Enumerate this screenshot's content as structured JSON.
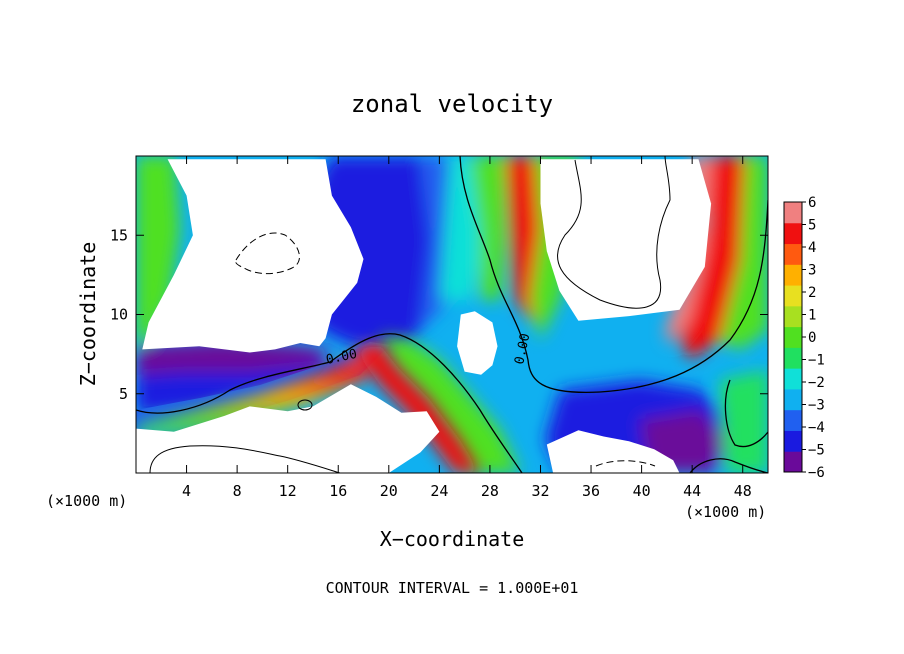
{
  "chart_data": {
    "type": "heatmap",
    "title": "zonal velocity",
    "xlabel": "X−coordinate",
    "ylabel": "Z−coordinate",
    "x_unit_left": "(×1000 m)",
    "x_unit_right": "(×1000 m)",
    "xlim": [
      0,
      50
    ],
    "ylim": [
      0,
      20
    ],
    "xticks": [
      4,
      8,
      12,
      16,
      20,
      24,
      28,
      32,
      36,
      40,
      44,
      48
    ],
    "xtick_labels": [
      "4",
      "8",
      "12",
      "16",
      "20",
      "24",
      "28",
      "32",
      "36",
      "40",
      "44",
      "48"
    ],
    "yticks": [
      5,
      10,
      15
    ],
    "ytick_labels": [
      "5",
      "10",
      "15"
    ],
    "colorbar": {
      "min": -6,
      "max": 6,
      "tick_labels": [
        "6",
        "5",
        "4",
        "3",
        "2",
        "1",
        "0",
        "−1",
        "−2",
        "−3",
        "−4",
        "−5",
        "−6"
      ],
      "colors": [
        "#6a0a9a",
        "#1a1ae0",
        "#2060f0",
        "#10b0f0",
        "#10e0d8",
        "#20e060",
        "#50e020",
        "#a8e020",
        "#e8e020",
        "#ffb000",
        "#ff5a10",
        "#f01010",
        "#f08080"
      ]
    },
    "contour_label": "0.00",
    "contour_interval_text": "CONTOUR INTERVAL = 1.000E+01",
    "fields": [
      {
        "name": "left-white",
        "value": 8,
        "points": [
          [
            0,
            19.8
          ],
          [
            2.5,
            19.8
          ],
          [
            4,
            17.5
          ],
          [
            4.5,
            15
          ],
          [
            3,
            12.5
          ],
          [
            1,
            9.5
          ],
          [
            0.5,
            7.8
          ],
          [
            5,
            8
          ],
          [
            9,
            7.6
          ],
          [
            11,
            7.8
          ],
          [
            13,
            8.2
          ],
          [
            14.5,
            8
          ],
          [
            15,
            8.5
          ],
          [
            15.5,
            10
          ],
          [
            16.5,
            11
          ],
          [
            17.5,
            12
          ],
          [
            18,
            13.5
          ],
          [
            17,
            15.5
          ],
          [
            15.5,
            17.5
          ],
          [
            15,
            19.8
          ]
        ]
      },
      {
        "name": "upper-right-white",
        "value": 8,
        "points": [
          [
            32,
            19.8
          ],
          [
            44.5,
            19.8
          ],
          [
            45.5,
            17
          ],
          [
            45,
            13
          ],
          [
            43,
            10.3
          ],
          [
            39,
            9.9
          ],
          [
            35,
            9.6
          ],
          [
            33.5,
            11.5
          ],
          [
            32.5,
            14
          ],
          [
            32,
            17
          ]
        ]
      },
      {
        "name": "ring-white",
        "value": 8,
        "points": [
          [
            25.7,
            10
          ],
          [
            26.8,
            10.2
          ],
          [
            28.2,
            9.5
          ],
          [
            28.6,
            8
          ],
          [
            28.2,
            6.8
          ],
          [
            27.3,
            6.2
          ],
          [
            26,
            6.4
          ],
          [
            25.4,
            8
          ]
        ]
      },
      {
        "name": "lower-left-white",
        "value": 8,
        "points": [
          [
            0,
            2.8
          ],
          [
            3,
            2.6
          ],
          [
            7,
            3.6
          ],
          [
            9,
            4.2
          ],
          [
            12,
            3.9
          ],
          [
            14,
            4.2
          ],
          [
            17,
            5.6
          ],
          [
            19,
            4.8
          ],
          [
            21,
            3.8
          ],
          [
            23,
            3.9
          ],
          [
            24,
            2.6
          ],
          [
            22.5,
            1.3
          ],
          [
            20,
            0
          ],
          [
            0,
            0
          ]
        ]
      },
      {
        "name": "bottom-right-white",
        "value": 8,
        "points": [
          [
            32.5,
            1.8
          ],
          [
            35,
            2.7
          ],
          [
            37,
            2.3
          ],
          [
            39,
            2
          ],
          [
            41,
            1.5
          ],
          [
            42.5,
            0.8
          ],
          [
            43,
            0
          ],
          [
            33,
            0
          ]
        ]
      }
    ]
  }
}
